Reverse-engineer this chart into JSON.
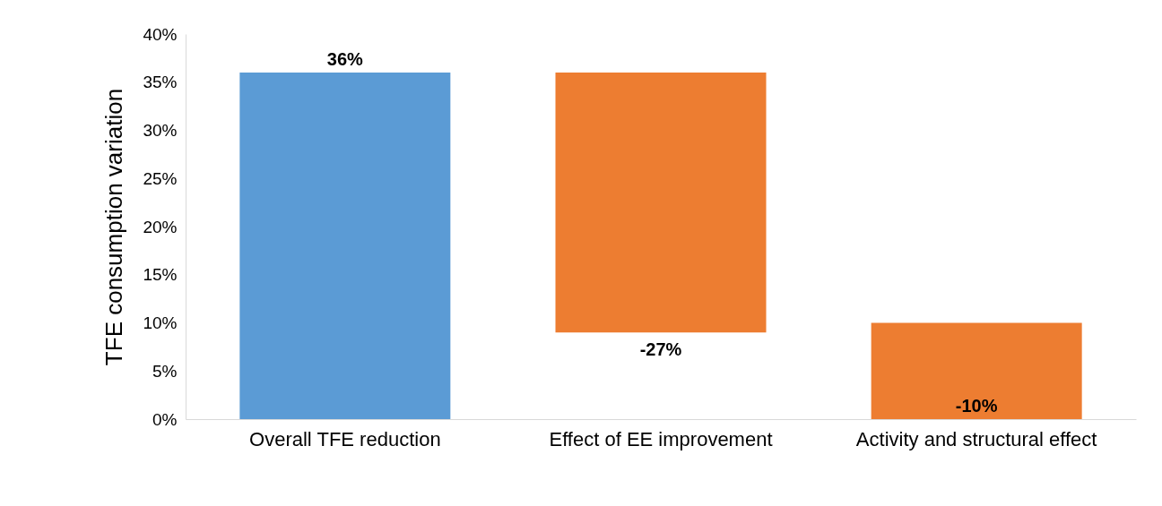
{
  "chart_data": {
    "type": "bar",
    "categories": [
      "Overall TFE reduction",
      "Effect of EE improvement",
      "Activity and structural effect"
    ],
    "values": [
      36,
      -27,
      -10
    ],
    "base": [
      0,
      36,
      10
    ],
    "colors": [
      "#5b9bd5",
      "#ed7d31",
      "#ed7d31"
    ],
    "value_labels": [
      "36%",
      "-27%",
      "-10%"
    ],
    "ylabel": "TFE consumption variation",
    "ylim": [
      0,
      40
    ],
    "yticks": [
      {
        "value": 0,
        "label": "0%"
      },
      {
        "value": 5,
        "label": "5%"
      },
      {
        "value": 10,
        "label": "10%"
      },
      {
        "value": 15,
        "label": "15%"
      },
      {
        "value": 20,
        "label": "20%"
      },
      {
        "value": 25,
        "label": "25%"
      },
      {
        "value": 30,
        "label": "30%"
      },
      {
        "value": 35,
        "label": "35%"
      },
      {
        "value": 40,
        "label": "40%"
      }
    ],
    "grid": false
  }
}
